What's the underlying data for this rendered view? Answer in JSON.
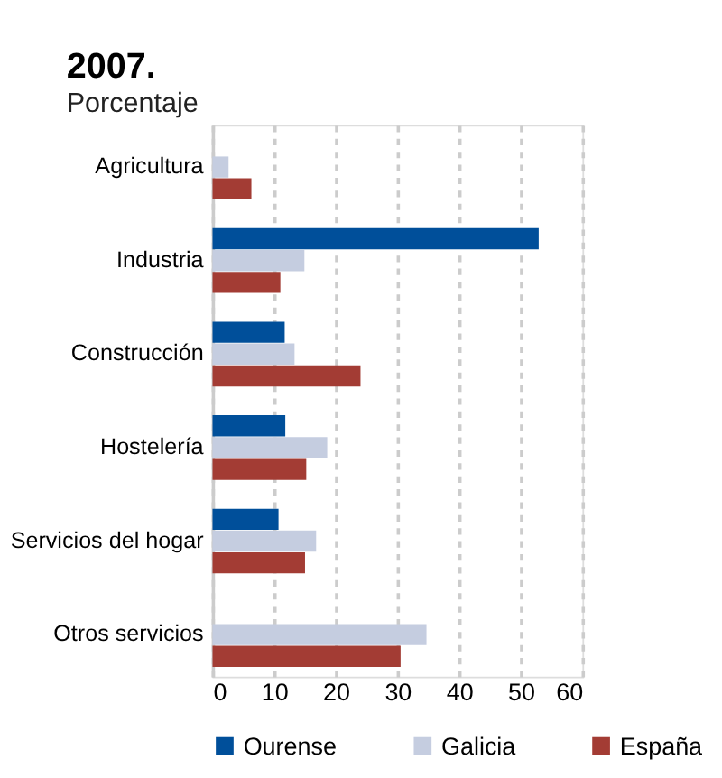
{
  "chart_data": {
    "type": "bar",
    "orientation": "horizontal",
    "title": "2007.",
    "subtitle": "Porcentaje",
    "categories": [
      "Agricultura",
      "Industria",
      "Construcción",
      "Hostelería",
      "Servicios del hogar",
      "Otros servicios"
    ],
    "series": [
      {
        "name": "Ourense",
        "color": "#004f9a",
        "values": [
          null,
          52.9,
          11.7,
          11.8,
          10.7,
          null
        ]
      },
      {
        "name": "Galicia",
        "color": "#c5cde0",
        "values": [
          2.6,
          14.9,
          13.3,
          18.6,
          16.8,
          34.7
        ]
      },
      {
        "name": "España",
        "color": "#a33c34",
        "values": [
          6.3,
          11.0,
          24.0,
          15.2,
          15.0,
          30.5
        ]
      }
    ],
    "xlim": [
      0,
      60
    ],
    "xticks": [
      0,
      10,
      20,
      30,
      40,
      50,
      60
    ],
    "grid": "x",
    "legend": "bottom"
  }
}
